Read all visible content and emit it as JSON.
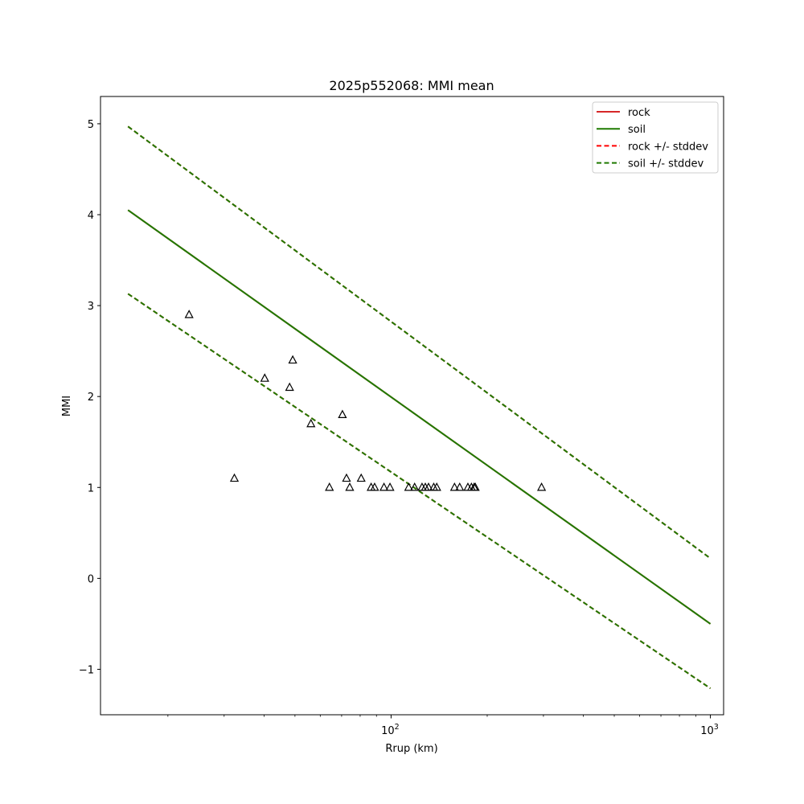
{
  "chart_data": {
    "type": "scatter",
    "title": "2025p552068: MMI mean",
    "xlabel": "Rrup (km)",
    "ylabel": "MMI",
    "xscale": "log",
    "xlim": [
      12.3,
      1100
    ],
    "ylim": [
      -1.5,
      5.3
    ],
    "yticks": [
      {
        "value": 5,
        "label": "5"
      },
      {
        "value": 4,
        "label": "4"
      },
      {
        "value": 3,
        "label": "3"
      },
      {
        "value": 2,
        "label": "2"
      },
      {
        "value": 1,
        "label": "1"
      },
      {
        "value": 0,
        "label": "0"
      },
      {
        "value": -1,
        "label": "−1"
      }
    ],
    "xticks_major": [
      {
        "base": "10",
        "exp": "2",
        "value": 100
      },
      {
        "base": "10",
        "exp": "3",
        "value": 1000
      }
    ],
    "xticks_minor": [
      20,
      30,
      40,
      50,
      60,
      70,
      80,
      90,
      200,
      300,
      400,
      500,
      600,
      700,
      800,
      900
    ],
    "legend_position": "top-right",
    "grid": false,
    "series": [
      {
        "name": "rock",
        "style": "solid",
        "color": "#d62728",
        "x": [
          15,
          1000
        ],
        "y": [
          4.05,
          -0.5
        ]
      },
      {
        "name": "soil",
        "style": "solid",
        "color": "#1f7a00",
        "x": [
          15,
          1000
        ],
        "y": [
          4.05,
          -0.5
        ]
      },
      {
        "name": "rock +/- stddev",
        "style": "dashed",
        "color": "#ff0000",
        "x": [
          15,
          1000
        ],
        "y": [
          4.97,
          0.22
        ],
        "x2": [
          15,
          1000
        ],
        "y2": [
          3.13,
          -1.21
        ]
      },
      {
        "name": "soil +/- stddev",
        "style": "dashed",
        "color": "#1f7a00",
        "x": [
          15,
          1000
        ],
        "y": [
          4.97,
          0.22
        ],
        "x2": [
          15,
          1000
        ],
        "y2": [
          3.13,
          -1.21
        ]
      }
    ],
    "observations": {
      "marker": "triangle",
      "points": [
        {
          "x": 23.3,
          "y": 2.9
        },
        {
          "x": 32.3,
          "y": 1.1
        },
        {
          "x": 40.2,
          "y": 2.2
        },
        {
          "x": 48.1,
          "y": 2.1
        },
        {
          "x": 49.2,
          "y": 2.4
        },
        {
          "x": 56.1,
          "y": 1.7
        },
        {
          "x": 64.1,
          "y": 1.0
        },
        {
          "x": 70.4,
          "y": 1.8
        },
        {
          "x": 72.5,
          "y": 1.1
        },
        {
          "x": 74.2,
          "y": 1.0
        },
        {
          "x": 80.6,
          "y": 1.1
        },
        {
          "x": 86.6,
          "y": 1.0
        },
        {
          "x": 88.8,
          "y": 1.0
        },
        {
          "x": 95.0,
          "y": 1.0
        },
        {
          "x": 99.2,
          "y": 1.0
        },
        {
          "x": 113.5,
          "y": 1.0
        },
        {
          "x": 118.5,
          "y": 1.0
        },
        {
          "x": 125.0,
          "y": 1.0
        },
        {
          "x": 128.0,
          "y": 1.0
        },
        {
          "x": 131.0,
          "y": 1.0
        },
        {
          "x": 136.0,
          "y": 1.0
        },
        {
          "x": 139.0,
          "y": 1.0
        },
        {
          "x": 158.0,
          "y": 1.0
        },
        {
          "x": 164.0,
          "y": 1.0
        },
        {
          "x": 174.0,
          "y": 1.0
        },
        {
          "x": 178.5,
          "y": 1.0
        },
        {
          "x": 182.0,
          "y": 1.0
        },
        {
          "x": 183.5,
          "y": 1.0
        },
        {
          "x": 296.0,
          "y": 1.0
        }
      ]
    }
  }
}
